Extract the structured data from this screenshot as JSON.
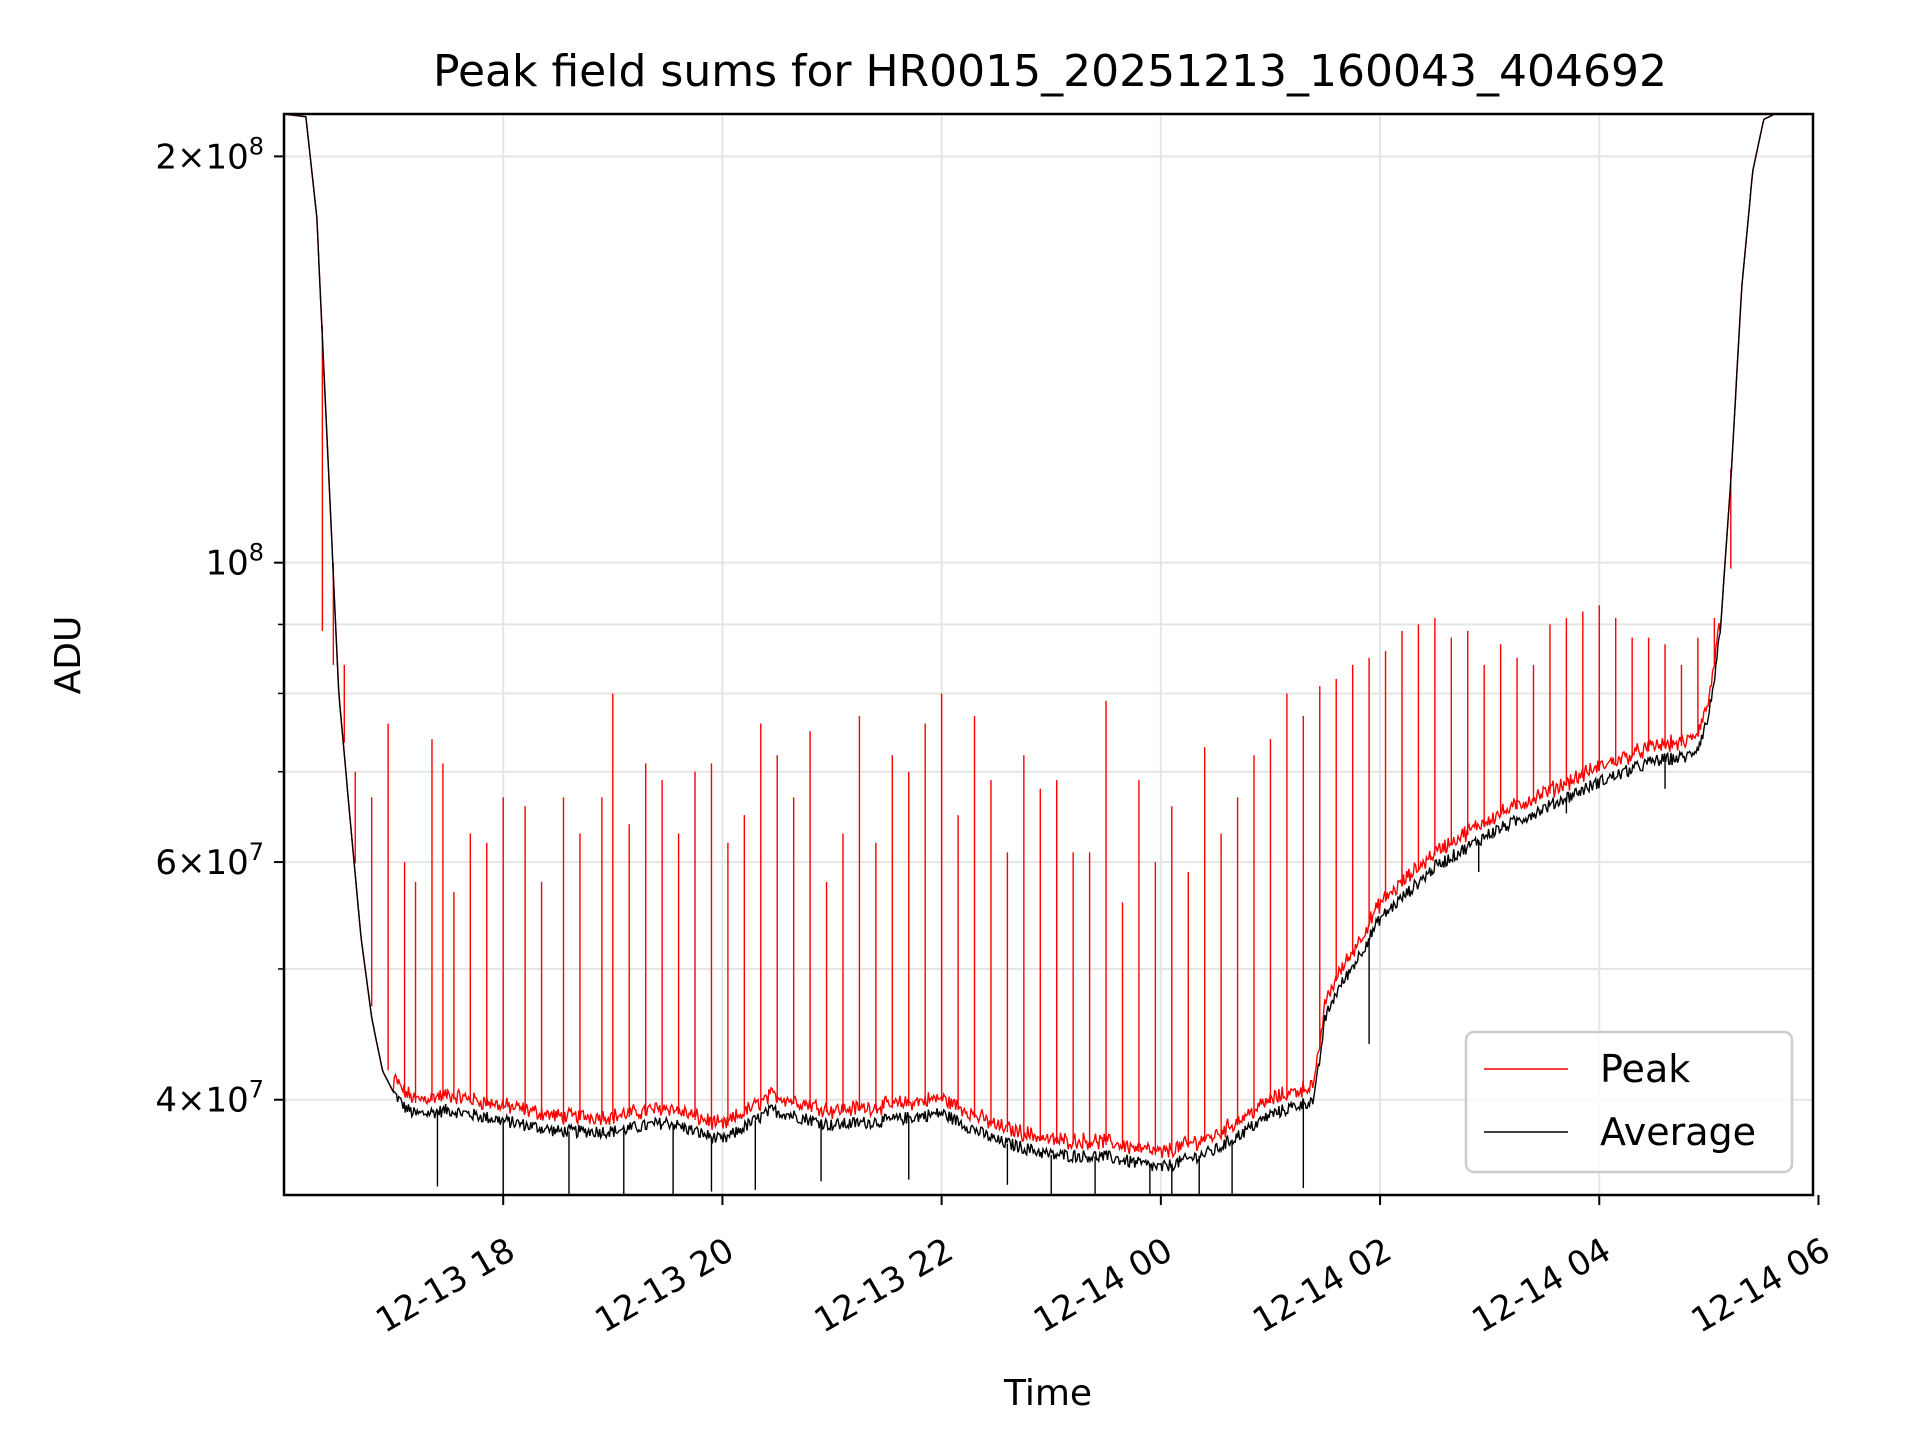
{
  "chart_data": {
    "type": "line",
    "title": "Peak field sums for HR0015_20251213_160043_404692",
    "xlabel": "Time",
    "ylabel": "ADU",
    "yscale": "log",
    "grid": true,
    "legend_position": "lower-right",
    "x_unit": "hours since 12-13 16:00",
    "xlim": [
      16.0,
      29.95
    ],
    "ylim": [
      34000000,
      215000000
    ],
    "x_ticks": [
      {
        "value": 18,
        "label": "12-13 18"
      },
      {
        "value": 20,
        "label": "12-13 20"
      },
      {
        "value": 22,
        "label": "12-13 22"
      },
      {
        "value": 24,
        "label": "12-14 00"
      },
      {
        "value": 26,
        "label": "12-14 02"
      },
      {
        "value": 28,
        "label": "12-14 04"
      },
      {
        "value": 30,
        "label": "12-14 06"
      }
    ],
    "y_major_ticks": [
      {
        "value": 40000000,
        "mantissa": "4",
        "exponent": "7"
      },
      {
        "value": 60000000,
        "mantissa": "6",
        "exponent": "7"
      },
      {
        "value": 100000000,
        "mantissa": "",
        "exponent": "8"
      },
      {
        "value": 200000000,
        "mantissa": "2",
        "exponent": "8"
      }
    ],
    "y_tick_base": "10",
    "y_tick_times": "×",
    "y_minor_ticks": [
      50000000,
      70000000,
      80000000,
      90000000
    ],
    "series": [
      {
        "name": "Average",
        "color": "#000000",
        "baseline_x": [
          16.0,
          16.2,
          16.3,
          16.4,
          16.5,
          16.6,
          16.7,
          16.8,
          16.9,
          17.0,
          17.1,
          17.2,
          17.5,
          18.0,
          18.5,
          19.0,
          19.5,
          20.0,
          20.45,
          21.0,
          21.5,
          22.0,
          22.5,
          23.0,
          23.5,
          24.0,
          24.5,
          25.0,
          25.4,
          25.5,
          25.6,
          25.8,
          26.0,
          26.5,
          27.0,
          27.5,
          28.0,
          28.5,
          28.8,
          28.9,
          29.0,
          29.1,
          29.2,
          29.3,
          29.4,
          29.5,
          29.6,
          29.7,
          29.95
        ],
        "baseline_y": [
          215000000,
          214000000,
          180000000,
          120000000,
          80000000,
          65000000,
          53000000,
          46000000,
          42000000,
          40500000,
          39500000,
          39000000,
          39300000,
          38600000,
          37900000,
          37900000,
          38500000,
          37300000,
          39300000,
          38300000,
          38600000,
          39100000,
          37300000,
          36400000,
          36300000,
          35600000,
          36700000,
          39000000,
          40000000,
          46000000,
          48000000,
          51000000,
          54500000,
          59500000,
          63000000,
          65800000,
          68800000,
          71300000,
          71800000,
          73000000,
          77000000,
          88000000,
          115000000,
          160000000,
          195000000,
          213000000,
          215000000,
          215000000,
          215000000
        ],
        "spikes_x": [
          17.4,
          18.0,
          18.6,
          19.1,
          19.55,
          19.9,
          20.3,
          20.9,
          21.7,
          22.6,
          23.0,
          23.4,
          23.9,
          24.1,
          24.35,
          24.65,
          25.3,
          25.9,
          26.9,
          27.7,
          28.6
        ],
        "spikes_y": [
          34500000,
          31000000,
          34000000,
          33500000,
          33800000,
          34200000,
          34300000,
          34800000,
          34900000,
          34600000,
          34000000,
          32000000,
          33200000,
          31600000,
          32500000,
          31500000,
          34400000,
          44000000,
          59000000,
          65200000,
          68000000
        ]
      },
      {
        "name": "Peak",
        "color": "#ff0000",
        "baseline_offset": 1.02,
        "spikes_x": [
          16.35,
          16.45,
          16.55,
          16.65,
          16.8,
          16.95,
          17.1,
          17.2,
          17.35,
          17.45,
          17.55,
          17.7,
          17.85,
          18.0,
          18.2,
          18.35,
          18.55,
          18.7,
          18.9,
          19.0,
          19.15,
          19.3,
          19.45,
          19.6,
          19.75,
          19.9,
          20.05,
          20.2,
          20.35,
          20.5,
          20.65,
          20.8,
          20.95,
          21.1,
          21.25,
          21.4,
          21.55,
          21.7,
          21.85,
          22.0,
          22.15,
          22.3,
          22.45,
          22.6,
          22.75,
          22.9,
          23.05,
          23.2,
          23.35,
          23.5,
          23.65,
          23.8,
          23.95,
          24.1,
          24.25,
          24.4,
          24.55,
          24.7,
          24.85,
          25.0,
          25.15,
          25.3,
          25.45,
          25.6,
          25.75,
          25.9,
          26.05,
          26.2,
          26.35,
          26.5,
          26.65,
          26.8,
          26.95,
          27.1,
          27.25,
          27.4,
          27.55,
          27.7,
          27.85,
          28.0,
          28.15,
          28.3,
          28.45,
          28.6,
          28.75,
          28.9,
          29.05,
          29.2
        ],
        "spikes_y": [
          89000000,
          84000000,
          84000000,
          70000000,
          67000000,
          76000000,
          60000000,
          58000000,
          74000000,
          71000000,
          57000000,
          63000000,
          62000000,
          67000000,
          66000000,
          58000000,
          67000000,
          63000000,
          67000000,
          80000000,
          64000000,
          71000000,
          69000000,
          63000000,
          70000000,
          71000000,
          62000000,
          65000000,
          76000000,
          72000000,
          67000000,
          75000000,
          58000000,
          63000000,
          77000000,
          62000000,
          72000000,
          70000000,
          76000000,
          80000000,
          65000000,
          77000000,
          69000000,
          61000000,
          72000000,
          68000000,
          69000000,
          61000000,
          61000000,
          79000000,
          56000000,
          69000000,
          60000000,
          66000000,
          59000000,
          73000000,
          63000000,
          67000000,
          72000000,
          74000000,
          80000000,
          77000000,
          81000000,
          82000000,
          84000000,
          85000000,
          86000000,
          89000000,
          90000000,
          91000000,
          88000000,
          89000000,
          84000000,
          87000000,
          85000000,
          84000000,
          90000000,
          91000000,
          92000000,
          93000000,
          91000000,
          88000000,
          88000000,
          87000000,
          84000000,
          88000000,
          91000000,
          99000000
        ]
      }
    ]
  }
}
